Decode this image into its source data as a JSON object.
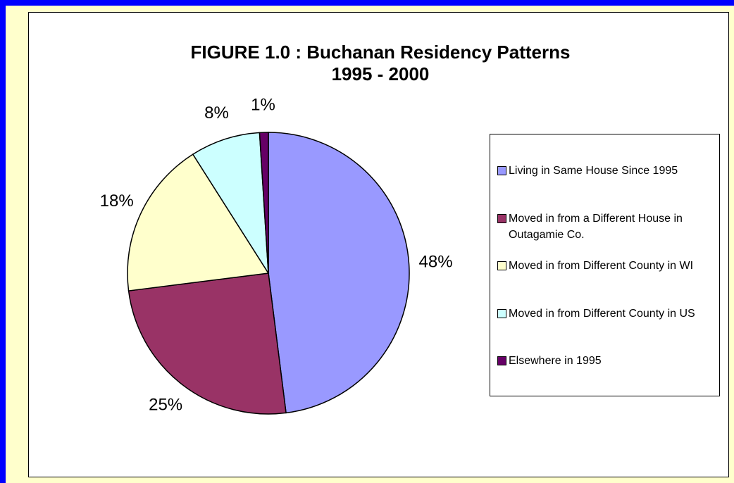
{
  "chart_data": {
    "type": "pie",
    "title": "FIGURE 1.0 :  Buchanan Residency Patterns",
    "subtitle": "1995 - 2000",
    "categories": [
      "Living in Same House Since 1995",
      "Moved in from a Different House in Outagamie Co.",
      "Moved in from Different County in WI",
      "Moved in from Different County in US",
      "Elsewhere in 1995"
    ],
    "values": [
      48,
      25,
      18,
      8,
      1
    ],
    "value_labels": [
      "48%",
      "25%",
      "18%",
      "8%",
      "1%"
    ],
    "colors": [
      "#9999ff",
      "#993366",
      "#ffffcc",
      "#ccffff",
      "#660066"
    ],
    "legend": "right"
  }
}
